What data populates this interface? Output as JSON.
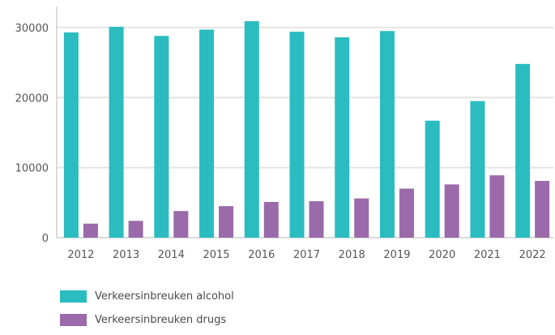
{
  "chart_data": {
    "type": "bar",
    "title": "",
    "xlabel": "",
    "ylabel": "",
    "categories": [
      "2012",
      "2013",
      "2014",
      "2015",
      "2016",
      "2017",
      "2018",
      "2019",
      "2020",
      "2021",
      "2022"
    ],
    "series": [
      {
        "name": "Verkeersinbreuken alcohol",
        "color": "#2bbcc0",
        "values": [
          29300,
          30100,
          28800,
          29700,
          30900,
          29400,
          28600,
          29500,
          16700,
          19500,
          24800
        ]
      },
      {
        "name": "Verkeersinbreuken drugs",
        "color": "#9a6aaa",
        "values": [
          2000,
          2400,
          3800,
          4500,
          5100,
          5200,
          5600,
          7000,
          7600,
          8900,
          8100
        ]
      }
    ],
    "yticks": [
      0,
      10000,
      20000,
      30000
    ],
    "ylim": [
      0,
      33000
    ],
    "grid": true,
    "legend_position": "bottom-left"
  }
}
